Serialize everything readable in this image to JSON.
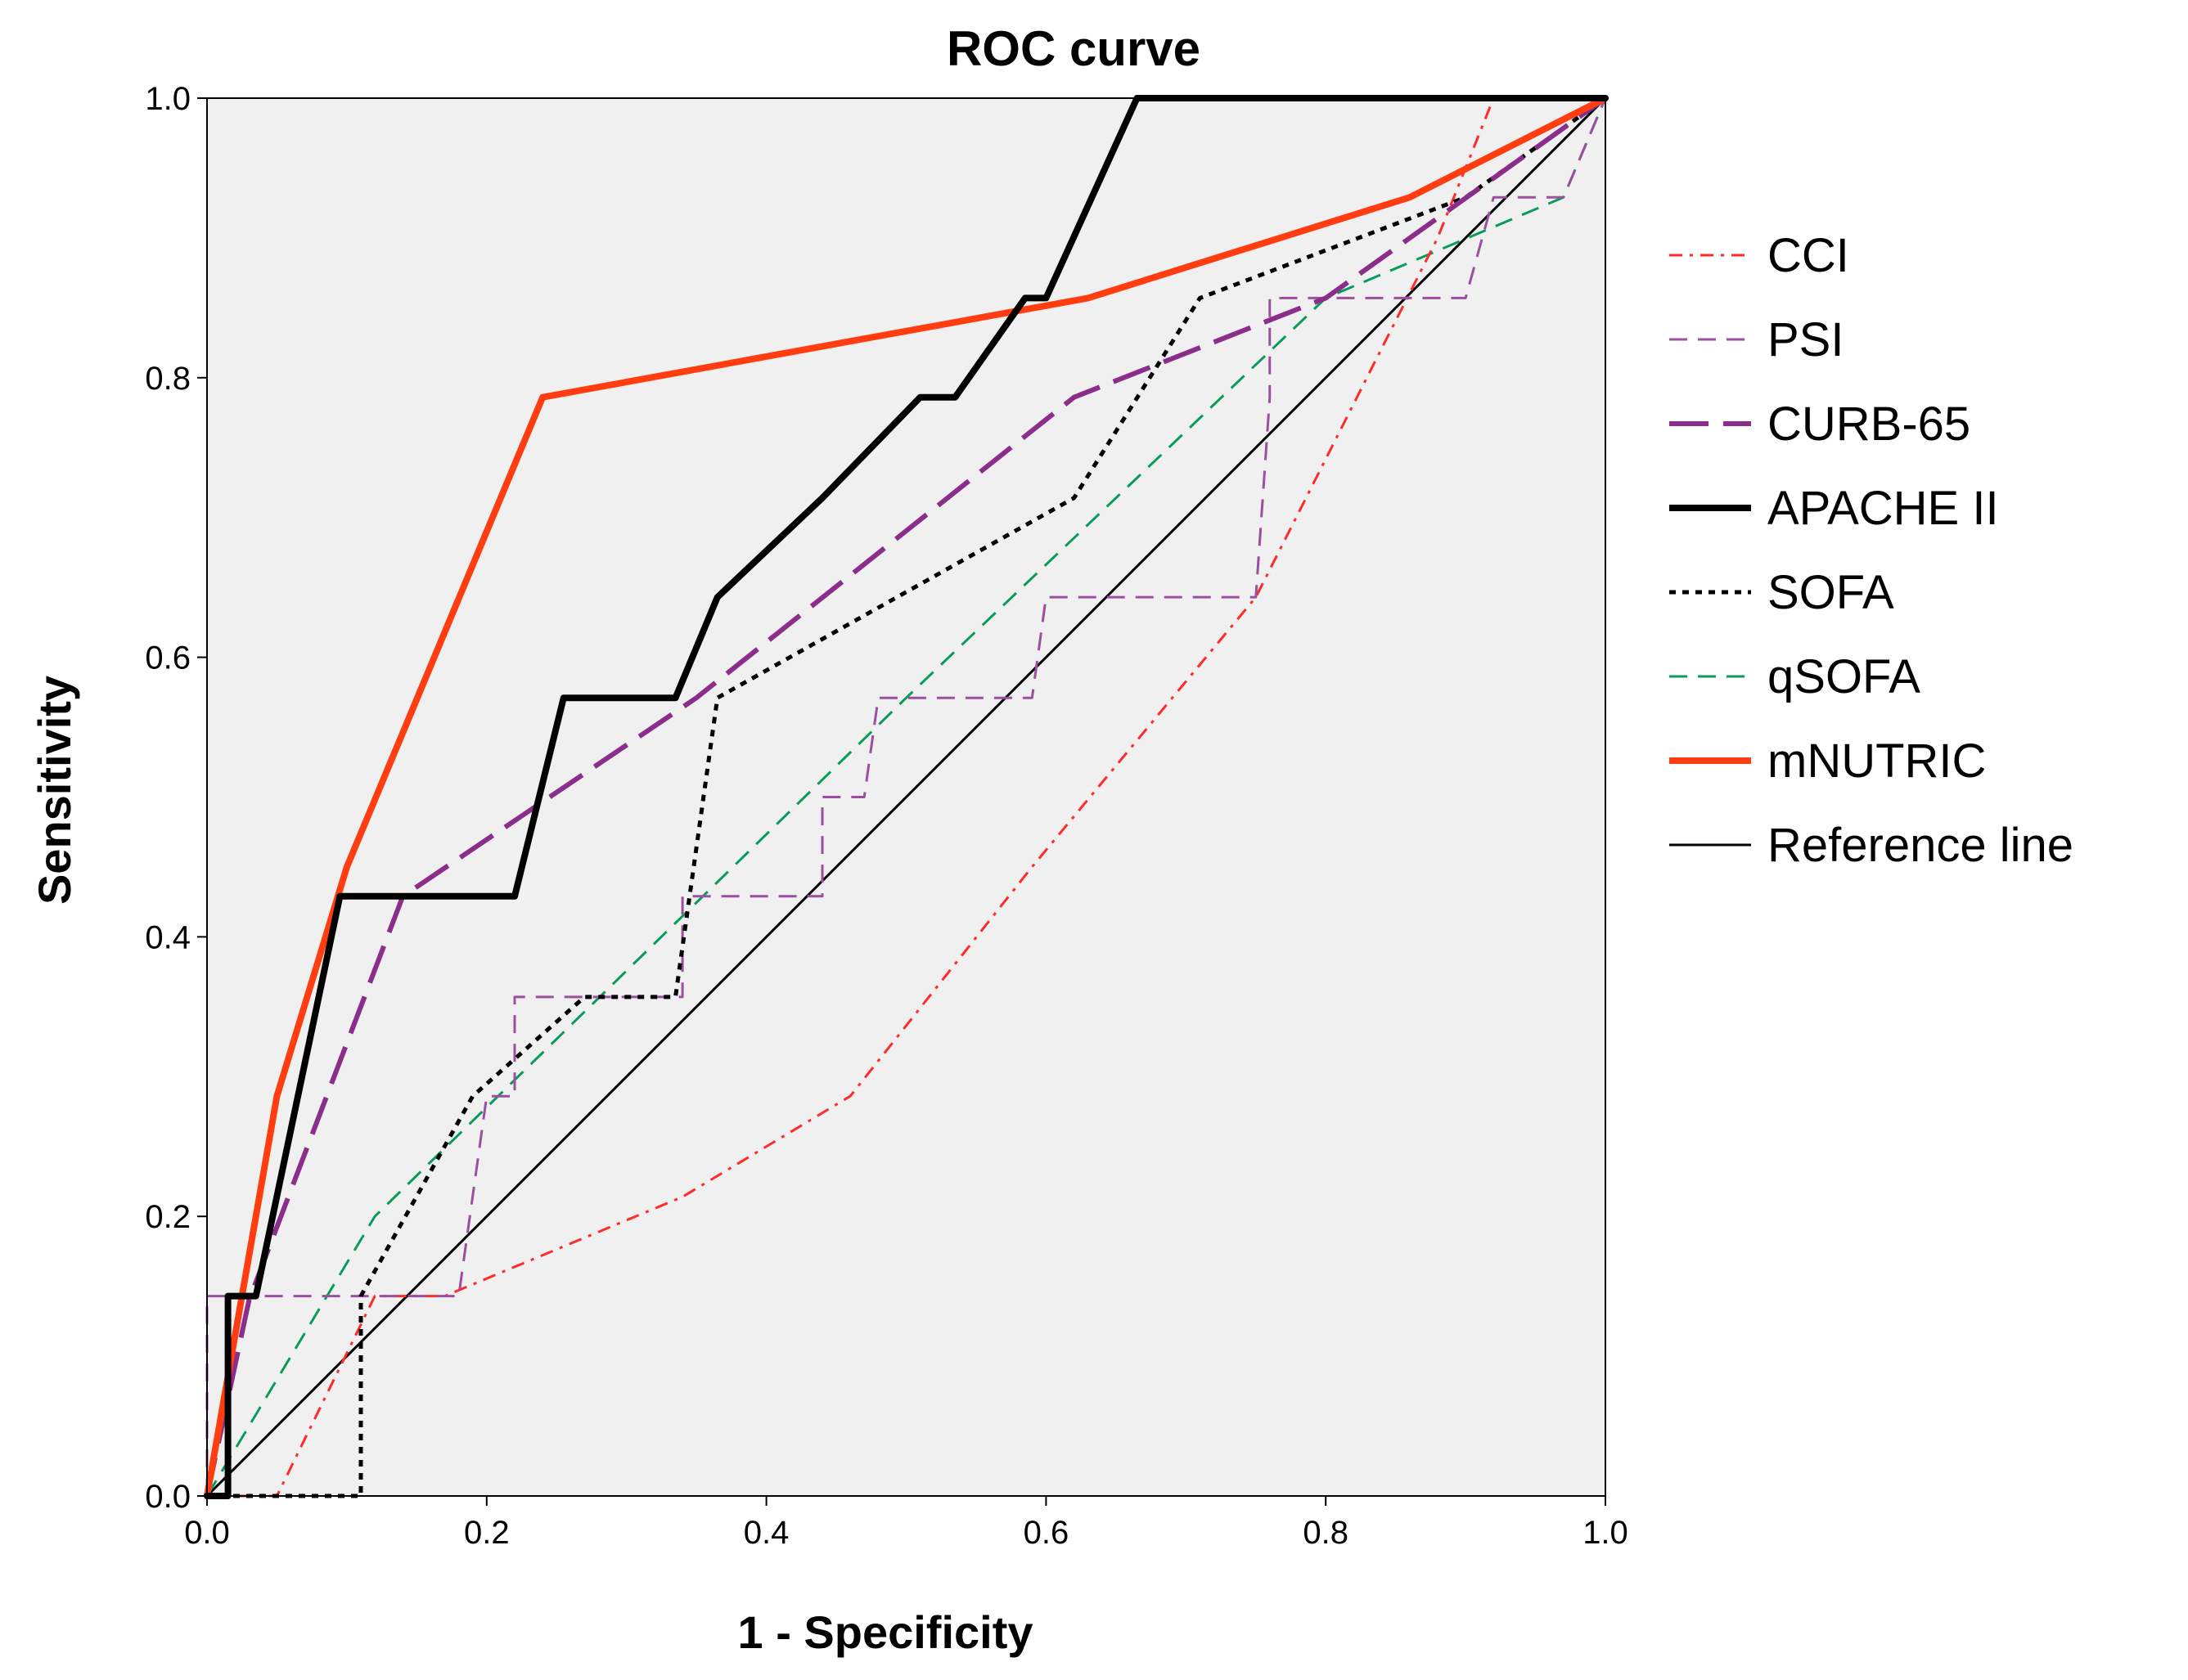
{
  "chart_data": {
    "type": "line",
    "title": "ROC curve",
    "xlabel": "1 - Specificity",
    "ylabel": "Sensitivity",
    "xlim": [
      0,
      1
    ],
    "ylim": [
      0,
      1
    ],
    "x_ticks": [
      "0.0",
      "0.2",
      "0.4",
      "0.6",
      "0.8",
      "1.0"
    ],
    "y_ticks": [
      "0.0",
      "0.2",
      "0.4",
      "0.6",
      "0.8",
      "1.0"
    ],
    "legend_position": "right",
    "plot_background": "#f0f0f0",
    "series": [
      {
        "name": "CCI",
        "color": "#ff2a2a",
        "style": "dashdot",
        "width": 3,
        "points": [
          [
            0,
            0
          ],
          [
            0.05,
            0
          ],
          [
            0.12,
            0.143
          ],
          [
            0.17,
            0.143
          ],
          [
            0.34,
            0.214
          ],
          [
            0.46,
            0.286
          ],
          [
            0.59,
            0.45
          ],
          [
            0.75,
            0.643
          ],
          [
            0.88,
            0.9
          ],
          [
            0.92,
            1
          ],
          [
            1,
            1
          ]
        ]
      },
      {
        "name": "PSI",
        "color": "#9b4fa0",
        "style": "dash",
        "width": 3,
        "points": [
          [
            0,
            0
          ],
          [
            0,
            0.143
          ],
          [
            0.18,
            0.143
          ],
          [
            0.2,
            0.286
          ],
          [
            0.22,
            0.286
          ],
          [
            0.22,
            0.357
          ],
          [
            0.34,
            0.357
          ],
          [
            0.34,
            0.429
          ],
          [
            0.44,
            0.429
          ],
          [
            0.44,
            0.5
          ],
          [
            0.47,
            0.5
          ],
          [
            0.48,
            0.571
          ],
          [
            0.59,
            0.571
          ],
          [
            0.6,
            0.643
          ],
          [
            0.75,
            0.643
          ],
          [
            0.76,
            0.786
          ],
          [
            0.76,
            0.857
          ],
          [
            0.9,
            0.857
          ],
          [
            0.92,
            0.929
          ],
          [
            0.97,
            0.929
          ],
          [
            1,
            1
          ]
        ]
      },
      {
        "name": "CURB-65",
        "color": "#8b2e8b",
        "style": "longdash",
        "width": 6,
        "points": [
          [
            0,
            0
          ],
          [
            0.03,
            0.14
          ],
          [
            0.14,
            0.429
          ],
          [
            0.35,
            0.571
          ],
          [
            0.62,
            0.786
          ],
          [
            0.8,
            0.857
          ],
          [
            1,
            1
          ]
        ]
      },
      {
        "name": "APACHE II",
        "color": "#000000",
        "style": "solid",
        "width": 8,
        "points": [
          [
            0,
            0
          ],
          [
            0.015,
            0
          ],
          [
            0.015,
            0.143
          ],
          [
            0.035,
            0.143
          ],
          [
            0.095,
            0.429
          ],
          [
            0.22,
            0.429
          ],
          [
            0.255,
            0.571
          ],
          [
            0.335,
            0.571
          ],
          [
            0.365,
            0.643
          ],
          [
            0.44,
            0.714
          ],
          [
            0.51,
            0.786
          ],
          [
            0.535,
            0.786
          ],
          [
            0.585,
            0.857
          ],
          [
            0.6,
            0.857
          ],
          [
            0.665,
            1
          ],
          [
            1,
            1
          ]
        ]
      },
      {
        "name": "SOFA",
        "color": "#000000",
        "style": "dotted",
        "width": 5,
        "points": [
          [
            0,
            0
          ],
          [
            0.11,
            0
          ],
          [
            0.11,
            0.143
          ],
          [
            0.19,
            0.286
          ],
          [
            0.27,
            0.357
          ],
          [
            0.335,
            0.357
          ],
          [
            0.365,
            0.571
          ],
          [
            0.62,
            0.714
          ],
          [
            0.71,
            0.857
          ],
          [
            0.9,
            0.929
          ],
          [
            1,
            1
          ]
        ]
      },
      {
        "name": "qSOFA",
        "color": "#0a9b5a",
        "style": "dash",
        "width": 3,
        "points": [
          [
            0,
            0
          ],
          [
            0.12,
            0.2
          ],
          [
            0.5,
            0.571
          ],
          [
            0.8,
            0.857
          ],
          [
            0.97,
            0.929
          ],
          [
            1,
            1
          ]
        ]
      },
      {
        "name": "mNUTRIC",
        "color": "#ff3d10",
        "style": "solid",
        "width": 8,
        "points": [
          [
            0,
            0
          ],
          [
            0.025,
            0.143
          ],
          [
            0.05,
            0.286
          ],
          [
            0.1,
            0.45
          ],
          [
            0.24,
            0.786
          ],
          [
            0.63,
            0.857
          ],
          [
            0.86,
            0.929
          ],
          [
            1,
            1
          ]
        ]
      },
      {
        "name": "Reference line",
        "color": "#000000",
        "style": "solid",
        "width": 3,
        "points": [
          [
            0,
            0
          ],
          [
            1,
            1
          ]
        ]
      }
    ]
  }
}
